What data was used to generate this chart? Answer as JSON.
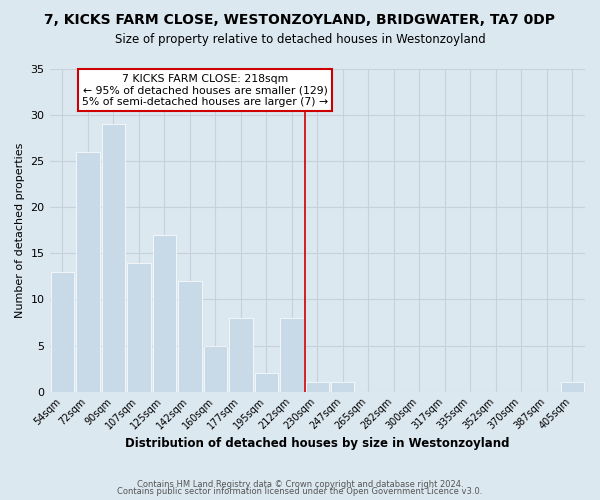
{
  "title": "7, KICKS FARM CLOSE, WESTONZOYLAND, BRIDGWATER, TA7 0DP",
  "subtitle": "Size of property relative to detached houses in Westonzoyland",
  "xlabel": "Distribution of detached houses by size in Westonzoyland",
  "ylabel": "Number of detached properties",
  "bar_labels": [
    "54sqm",
    "72sqm",
    "90sqm",
    "107sqm",
    "125sqm",
    "142sqm",
    "160sqm",
    "177sqm",
    "195sqm",
    "212sqm",
    "230sqm",
    "247sqm",
    "265sqm",
    "282sqm",
    "300sqm",
    "317sqm",
    "335sqm",
    "352sqm",
    "370sqm",
    "387sqm",
    "405sqm"
  ],
  "bar_heights": [
    13,
    26,
    29,
    14,
    17,
    12,
    5,
    8,
    2,
    8,
    1,
    1,
    0,
    0,
    0,
    0,
    0,
    0,
    0,
    0,
    1
  ],
  "bar_color": "#c8d9e8",
  "bar_edge_color": "#ffffff",
  "highlight_line_color": "#cc0000",
  "annotation_title": "7 KICKS FARM CLOSE: 218sqm",
  "annotation_line1": "← 95% of detached houses are smaller (129)",
  "annotation_line2": "5% of semi-detached houses are larger (7) →",
  "annotation_box_color": "#ffffff",
  "annotation_box_edge_color": "#cc0000",
  "ylim": [
    0,
    35
  ],
  "yticks": [
    0,
    5,
    10,
    15,
    20,
    25,
    30,
    35
  ],
  "grid_color": "#c8d0dc",
  "background_color": "#dce8f0",
  "footer_line1": "Contains HM Land Registry data © Crown copyright and database right 2024.",
  "footer_line2": "Contains public sector information licensed under the Open Government Licence v3.0."
}
